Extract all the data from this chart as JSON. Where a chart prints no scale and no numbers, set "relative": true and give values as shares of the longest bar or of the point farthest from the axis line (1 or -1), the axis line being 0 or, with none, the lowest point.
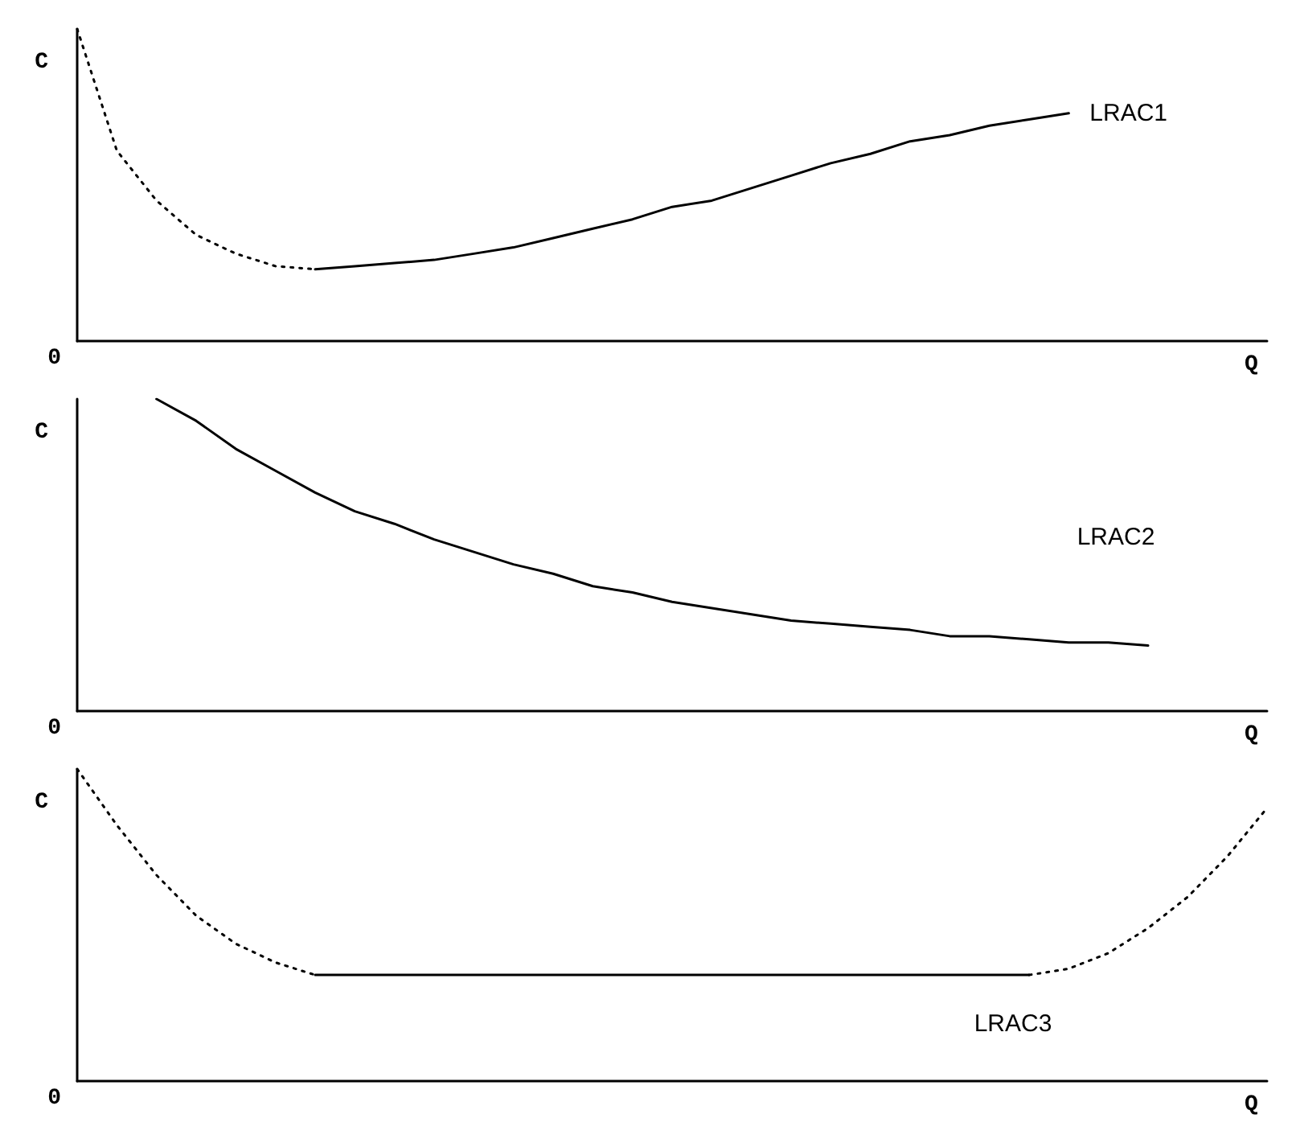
{
  "chart_data": [
    {
      "type": "line",
      "relative": true,
      "xlabel": "Q",
      "ylabel": "C",
      "annotations": [
        "0"
      ],
      "legend": false,
      "grid": false,
      "marker": "none",
      "color": "#000000",
      "categories": [
        null,
        null,
        null,
        null,
        null,
        null,
        null,
        null,
        null,
        null,
        null,
        null,
        null,
        null,
        null,
        null,
        null,
        null,
        null,
        null,
        null,
        null,
        null,
        null,
        null,
        null,
        null,
        null,
        null,
        null,
        null
      ],
      "series": [
        {
          "line_style": "dotted",
          "values": [
            1.0,
            0.61,
            0.45,
            0.34,
            0.28,
            0.24,
            0.23,
            null,
            null,
            null,
            null,
            null,
            null,
            null,
            null,
            null,
            null,
            null,
            null,
            null,
            null,
            null,
            null,
            null,
            null,
            null,
            null,
            null,
            null,
            null,
            null
          ]
        },
        {
          "name": "LRAC1",
          "line_style": "solid",
          "values": [
            null,
            null,
            null,
            null,
            null,
            null,
            0.23,
            0.24,
            0.25,
            0.26,
            0.28,
            0.3,
            0.33,
            0.36,
            0.39,
            0.43,
            0.45,
            0.49,
            0.53,
            0.57,
            0.6,
            0.64,
            0.66,
            0.69,
            0.71,
            0.73,
            null,
            null,
            null,
            null,
            null
          ]
        }
      ]
    },
    {
      "type": "line",
      "relative": true,
      "xlabel": "Q",
      "ylabel": "C",
      "annotations": [
        "0"
      ],
      "legend": false,
      "grid": false,
      "marker": "none",
      "color": "#000000",
      "categories": [
        null,
        null,
        null,
        null,
        null,
        null,
        null,
        null,
        null,
        null,
        null,
        null,
        null,
        null,
        null,
        null,
        null,
        null,
        null,
        null,
        null,
        null,
        null,
        null,
        null,
        null,
        null,
        null,
        null,
        null,
        null
      ],
      "series": [
        {
          "name": "LRAC2",
          "line_style": "solid",
          "values": [
            null,
            null,
            1.0,
            0.93,
            0.84,
            0.77,
            0.7,
            0.64,
            0.6,
            0.55,
            0.51,
            0.47,
            0.44,
            0.4,
            0.38,
            0.35,
            0.33,
            0.31,
            0.29,
            0.28,
            0.27,
            0.26,
            0.24,
            0.24,
            0.23,
            0.22,
            0.22,
            0.21,
            null,
            null,
            null
          ]
        }
      ]
    },
    {
      "type": "line",
      "relative": true,
      "xlabel": "Q",
      "ylabel": "C",
      "annotations": [
        "0"
      ],
      "legend": false,
      "grid": false,
      "marker": "none",
      "color": "#000000",
      "categories": [
        null,
        null,
        null,
        null,
        null,
        null,
        null,
        null,
        null,
        null,
        null,
        null,
        null,
        null,
        null,
        null,
        null,
        null,
        null,
        null,
        null,
        null,
        null,
        null,
        null,
        null,
        null,
        null,
        null,
        null,
        null
      ],
      "series": [
        {
          "line_style": "dotted",
          "values": [
            1.0,
            0.82,
            0.66,
            0.53,
            0.44,
            0.38,
            0.34,
            null,
            null,
            null,
            null,
            null,
            null,
            null,
            null,
            null,
            null,
            null,
            null,
            null,
            null,
            null,
            null,
            null,
            null,
            null,
            null,
            null,
            null,
            null,
            null
          ]
        },
        {
          "name": "LRAC3",
          "line_style": "solid",
          "values": [
            null,
            null,
            null,
            null,
            null,
            null,
            0.34,
            0.34,
            0.34,
            0.34,
            0.34,
            0.34,
            0.34,
            0.34,
            0.34,
            0.34,
            0.34,
            0.34,
            0.34,
            0.34,
            0.34,
            0.34,
            0.34,
            0.34,
            0.34,
            null,
            null,
            null,
            null,
            null,
            null
          ]
        },
        {
          "line_style": "dotted",
          "values": [
            null,
            null,
            null,
            null,
            null,
            null,
            null,
            null,
            null,
            null,
            null,
            null,
            null,
            null,
            null,
            null,
            null,
            null,
            null,
            null,
            null,
            null,
            null,
            null,
            0.34,
            0.36,
            0.41,
            0.49,
            0.59,
            0.72,
            0.875
          ]
        }
      ]
    }
  ]
}
